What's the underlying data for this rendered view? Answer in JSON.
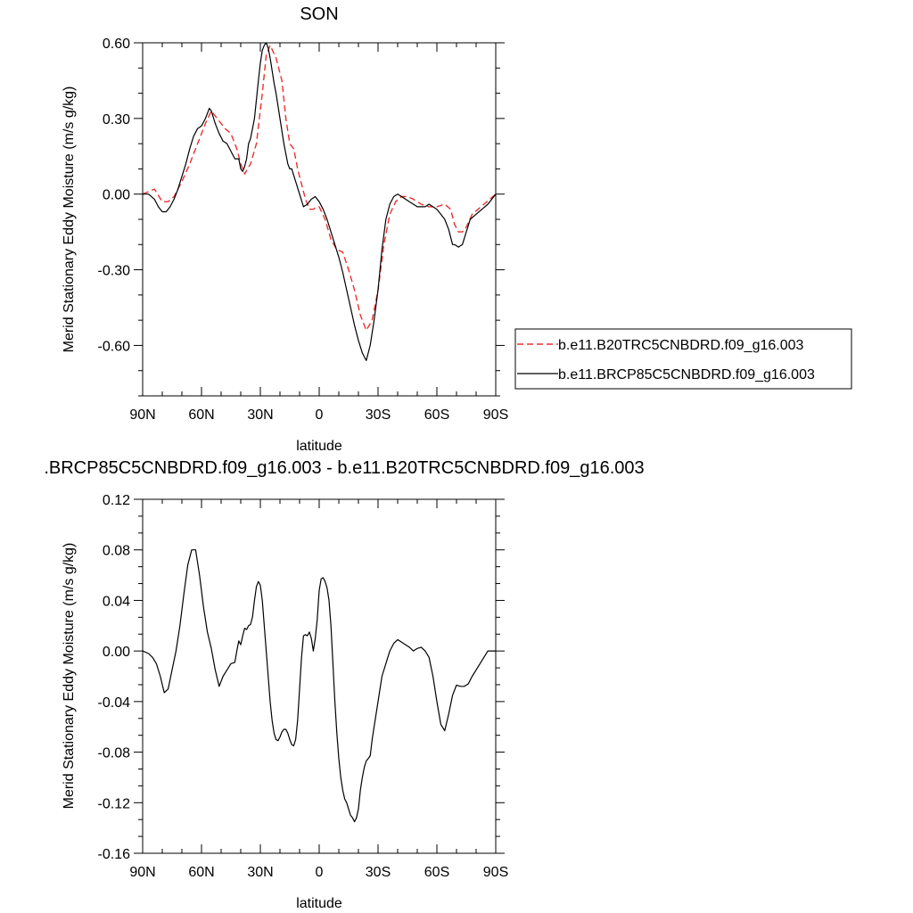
{
  "chart_data": [
    {
      "type": "line",
      "title": "SON",
      "xlabel": "latitude",
      "ylabel": "Merid Stationary Eddy Moisture (m/s g/kg)",
      "xlim": [
        90,
        -90
      ],
      "ylim": [
        -0.8,
        0.6
      ],
      "xticks": [
        90,
        60,
        30,
        0,
        -30,
        -60,
        -90
      ],
      "xtick_labels": [
        "90N",
        "60N",
        "30N",
        "0",
        "30S",
        "60S",
        "90S"
      ],
      "yticks": [
        0.6,
        0.3,
        0.0,
        -0.3,
        -0.6
      ],
      "ytick_labels": [
        "0.60",
        "0.30",
        "0.00",
        "-0.30",
        "-0.60"
      ],
      "legend_position": "right",
      "series": [
        {
          "name": "b.e11.B20TRC5CNBDRD.f09_g16.003",
          "color": "#e8312f",
          "dash": "dashed",
          "x": [
            90,
            84,
            80,
            77,
            74,
            70,
            66,
            62,
            58,
            55,
            52,
            48,
            45,
            42,
            40,
            38,
            35,
            32,
            29,
            27,
            25,
            22,
            19,
            17,
            15,
            13,
            11,
            9,
            7,
            5,
            3,
            1,
            0,
            -3,
            -6,
            -9,
            -12,
            -15,
            -18,
            -21,
            -24,
            -27,
            -30,
            -33,
            -36,
            -39,
            -42,
            -45,
            -48,
            -52,
            -56,
            -60,
            -64,
            -67,
            -69,
            -71,
            -73,
            -75,
            -78,
            -81,
            -84,
            -87,
            -90
          ],
          "y": [
            0.0,
            0.02,
            -0.03,
            -0.03,
            -0.01,
            0.05,
            0.12,
            0.2,
            0.28,
            0.33,
            0.3,
            0.26,
            0.24,
            0.18,
            0.12,
            0.08,
            0.12,
            0.2,
            0.4,
            0.55,
            0.59,
            0.54,
            0.45,
            0.3,
            0.2,
            0.18,
            0.1,
            0.04,
            -0.02,
            -0.06,
            -0.06,
            -0.05,
            -0.05,
            -0.1,
            -0.18,
            -0.22,
            -0.23,
            -0.3,
            -0.38,
            -0.48,
            -0.54,
            -0.5,
            -0.38,
            -0.2,
            -0.08,
            -0.03,
            -0.01,
            -0.01,
            -0.02,
            -0.04,
            -0.05,
            -0.05,
            -0.04,
            -0.06,
            -0.12,
            -0.15,
            -0.15,
            -0.13,
            -0.08,
            -0.06,
            -0.04,
            -0.02,
            0.0
          ]
        },
        {
          "name": "b.e11.BRCP85C5CNBDRD.f09_g16.003",
          "color": "#000000",
          "dash": "solid",
          "x": [
            90,
            87,
            84,
            82,
            80,
            78,
            76,
            74,
            72,
            70,
            68,
            66,
            64,
            62,
            60,
            58,
            56,
            55,
            53,
            51,
            49,
            47,
            45,
            43,
            41,
            40,
            39,
            38,
            37,
            36,
            35,
            34,
            33,
            31,
            30,
            29,
            28,
            27,
            26,
            25,
            24,
            23,
            22,
            21,
            20,
            18,
            16,
            15,
            14,
            12,
            10,
            8,
            6,
            4,
            2,
            1,
            0,
            -2,
            -4,
            -6,
            -8,
            -10,
            -12,
            -14,
            -16,
            -18,
            -20,
            -22,
            -24,
            -26,
            -28,
            -30,
            -32,
            -34,
            -36,
            -38,
            -40,
            -42,
            -44,
            -46,
            -48,
            -50,
            -52,
            -54,
            -56,
            -58,
            -60,
            -62,
            -64,
            -66,
            -67,
            -68,
            -69,
            -71,
            -73,
            -75,
            -77,
            -80,
            -83,
            -86,
            -90
          ],
          "y": [
            0.0,
            0.0,
            -0.02,
            -0.05,
            -0.07,
            -0.07,
            -0.05,
            -0.02,
            0.02,
            0.07,
            0.12,
            0.18,
            0.23,
            0.26,
            0.27,
            0.3,
            0.34,
            0.33,
            0.28,
            0.24,
            0.21,
            0.2,
            0.17,
            0.14,
            0.14,
            0.1,
            0.09,
            0.11,
            0.14,
            0.2,
            0.22,
            0.26,
            0.3,
            0.45,
            0.52,
            0.57,
            0.59,
            0.6,
            0.58,
            0.54,
            0.49,
            0.44,
            0.4,
            0.35,
            0.3,
            0.2,
            0.12,
            0.1,
            0.1,
            0.05,
            0.0,
            -0.05,
            -0.04,
            -0.02,
            -0.01,
            -0.02,
            -0.03,
            -0.06,
            -0.1,
            -0.15,
            -0.2,
            -0.25,
            -0.31,
            -0.38,
            -0.45,
            -0.52,
            -0.58,
            -0.63,
            -0.66,
            -0.6,
            -0.5,
            -0.38,
            -0.22,
            -0.1,
            -0.04,
            -0.01,
            0.0,
            -0.01,
            -0.02,
            -0.03,
            -0.04,
            -0.05,
            -0.05,
            -0.05,
            -0.04,
            -0.05,
            -0.06,
            -0.08,
            -0.1,
            -0.14,
            -0.17,
            -0.2,
            -0.2,
            -0.21,
            -0.2,
            -0.15,
            -0.1,
            -0.08,
            -0.06,
            -0.04,
            0.0
          ]
        }
      ]
    },
    {
      "type": "line",
      "title": ".BRCP85C5CNBDRD.f09_g16.003 - b.e11.B20TRC5CNBDRD.f09_g16.003",
      "xlabel": "latitude",
      "ylabel": "Merid Stationary Eddy Moisture (m/s g/kg)",
      "xlim": [
        90,
        -90
      ],
      "ylim": [
        -0.16,
        0.12
      ],
      "xticks": [
        90,
        60,
        30,
        0,
        -30,
        -60,
        -90
      ],
      "xtick_labels": [
        "90N",
        "60N",
        "30N",
        "0",
        "30S",
        "60S",
        "90S"
      ],
      "yticks": [
        0.12,
        0.08,
        0.04,
        0.0,
        -0.04,
        -0.08,
        -0.12,
        -0.16
      ],
      "ytick_labels": [
        "0.12",
        "0.08",
        "0.04",
        "0.00",
        "-0.04",
        "-0.08",
        "-0.12",
        "-0.16"
      ],
      "series": [
        {
          "color": "#000000",
          "dash": "solid",
          "x": [
            90,
            87,
            85,
            83,
            81,
            79,
            77,
            75,
            73,
            71,
            69,
            67,
            65,
            63,
            61,
            59,
            57,
            55,
            53,
            51,
            49,
            47,
            45,
            43,
            42,
            41,
            40,
            39,
            38,
            37,
            36,
            35,
            34,
            33,
            32,
            31,
            30,
            29,
            28,
            27,
            26,
            25,
            24,
            23,
            22,
            21,
            20,
            19,
            18,
            17,
            16,
            15,
            14,
            13,
            12,
            11,
            10,
            9,
            8,
            7,
            6,
            5,
            4,
            3,
            2,
            1,
            0,
            -1,
            -2,
            -3,
            -4,
            -5,
            -6,
            -7,
            -8,
            -9,
            -10,
            -11,
            -12,
            -13,
            -14,
            -15,
            -16,
            -17,
            -18,
            -19,
            -20,
            -21,
            -22,
            -23,
            -24,
            -25,
            -26,
            -27,
            -28,
            -30,
            -32,
            -34,
            -36,
            -38,
            -40,
            -42,
            -44,
            -46,
            -48,
            -50,
            -52,
            -54,
            -56,
            -58,
            -60,
            -62,
            -64,
            -66,
            -68,
            -70,
            -72,
            -74,
            -76,
            -78,
            -80,
            -82,
            -84,
            -86,
            -88,
            -90
          ],
          "y": [
            0.0,
            -0.002,
            -0.005,
            -0.01,
            -0.02,
            -0.033,
            -0.03,
            -0.015,
            0.0,
            0.02,
            0.045,
            0.068,
            0.08,
            0.08,
            0.06,
            0.035,
            0.015,
            0.002,
            -0.015,
            -0.028,
            -0.02,
            -0.015,
            -0.01,
            -0.009,
            0.0,
            0.008,
            0.005,
            0.012,
            0.018,
            0.017,
            0.02,
            0.021,
            0.027,
            0.04,
            0.051,
            0.055,
            0.052,
            0.04,
            0.02,
            0.0,
            -0.02,
            -0.04,
            -0.055,
            -0.065,
            -0.07,
            -0.071,
            -0.068,
            -0.064,
            -0.062,
            -0.062,
            -0.065,
            -0.07,
            -0.074,
            -0.075,
            -0.07,
            -0.055,
            -0.03,
            -0.005,
            0.012,
            0.013,
            0.012,
            0.015,
            0.01,
            0.0,
            0.01,
            0.025,
            0.048,
            0.057,
            0.058,
            0.055,
            0.05,
            0.04,
            0.02,
            -0.01,
            -0.04,
            -0.065,
            -0.085,
            -0.1,
            -0.11,
            -0.117,
            -0.12,
            -0.125,
            -0.13,
            -0.132,
            -0.135,
            -0.132,
            -0.125,
            -0.11,
            -0.1,
            -0.092,
            -0.087,
            -0.085,
            -0.083,
            -0.07,
            -0.06,
            -0.04,
            -0.02,
            -0.01,
            0.0,
            0.006,
            0.009,
            0.007,
            0.005,
            0.003,
            0.0,
            0.002,
            0.003,
            0.0,
            -0.005,
            -0.02,
            -0.04,
            -0.058,
            -0.063,
            -0.05,
            -0.035,
            -0.027,
            -0.028,
            -0.028,
            -0.026,
            -0.02,
            -0.015,
            -0.01,
            -0.005,
            0.0,
            0.0,
            0.0
          ]
        }
      ]
    }
  ]
}
